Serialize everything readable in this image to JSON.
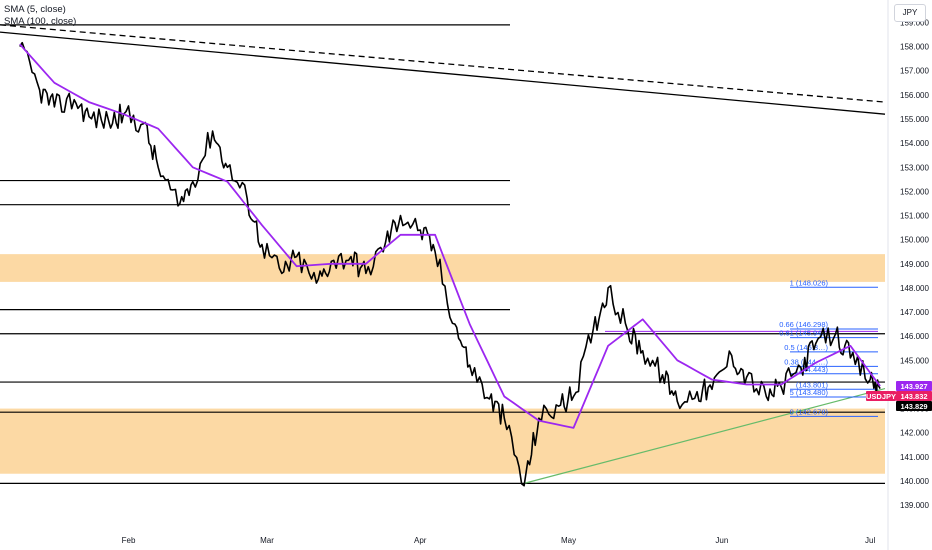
{
  "legend": {
    "sma5": "SMA (5, close)",
    "sma100": "SMA (100, close)"
  },
  "currency_button": "JPY",
  "colors": {
    "price": "#000000",
    "sma5": "#9c27f0",
    "fib": "#2962ff",
    "zone": "#fcd9a4",
    "trendline": "#66bb6a",
    "usdjpy_badge": "#e91e63",
    "sma_badge": "#9c27f0"
  },
  "chart_data": {
    "type": "line",
    "symbol": "USDJPY",
    "ylim": [
      138.3,
      159.6
    ],
    "y_ticks": [
      "159.000",
      "158.000",
      "157.000",
      "156.000",
      "155.000",
      "154.000",
      "153.000",
      "152.000",
      "151.000",
      "150.000",
      "149.000",
      "148.000",
      "147.000",
      "146.000",
      "145.000",
      "144.000",
      "143.000",
      "142.000",
      "141.000",
      "140.000",
      "139.000"
    ],
    "x_ticks": [
      "Feb",
      "Mar",
      "Apr",
      "May",
      "Jun",
      "Jul"
    ],
    "series": [
      {
        "x": [
          "2025-01-10",
          "2025-01-14",
          "2025-01-17",
          "2025-01-21",
          "2025-01-24",
          "2025-01-28",
          "2025-01-31",
          "2025-02-04",
          "2025-02-07",
          "2025-02-11",
          "2025-02-14",
          "2025-02-18",
          "2025-02-21",
          "2025-02-25",
          "2025-02-28",
          "2025-03-04",
          "2025-03-07",
          "2025-03-11",
          "2025-03-14",
          "2025-03-18",
          "2025-03-21",
          "2025-03-25",
          "2025-03-28",
          "2025-04-01",
          "2025-04-04",
          "2025-04-08",
          "2025-04-11",
          "2025-04-15",
          "2025-04-18",
          "2025-04-22",
          "2025-04-25",
          "2025-04-29",
          "2025-05-02",
          "2025-05-06",
          "2025-05-09",
          "2025-05-13",
          "2025-05-16",
          "2025-05-20",
          "2025-05-23",
          "2025-05-27",
          "2025-05-30",
          "2025-06-03",
          "2025-06-06",
          "2025-06-10",
          "2025-06-13",
          "2025-06-17",
          "2025-06-20",
          "2025-06-24",
          "2025-06-27",
          "2025-07-01",
          "2025-07-03"
        ],
        "y": [
          158.0,
          156.2,
          155.5,
          155.8,
          155.1,
          154.9,
          155.2,
          154.8,
          153.0,
          151.4,
          152.4,
          154.5,
          153.0,
          151.7,
          149.8,
          148.6,
          149.3,
          148.2,
          149.1,
          149.3,
          148.6,
          149.9,
          151.0,
          150.4,
          149.5,
          146.5,
          144.8,
          143.4,
          142.6,
          139.8,
          142.6,
          143.1,
          143.5,
          146.3,
          148.0,
          146.2,
          145.4,
          144.4,
          143.3,
          143.7,
          143.8,
          145.2,
          144.3,
          143.5,
          143.9,
          144.7,
          145.7,
          146.1,
          145.1,
          144.2,
          143.83
        ]
      },
      {
        "name": "SMA (5, close)",
        "x": [
          "2025-01-10",
          "2025-01-17",
          "2025-01-24",
          "2025-01-31",
          "2025-02-07",
          "2025-02-14",
          "2025-02-21",
          "2025-02-28",
          "2025-03-07",
          "2025-03-14",
          "2025-03-21",
          "2025-03-28",
          "2025-04-04",
          "2025-04-11",
          "2025-04-18",
          "2025-04-25",
          "2025-05-02",
          "2025-05-09",
          "2025-05-16",
          "2025-05-23",
          "2025-05-30",
          "2025-06-06",
          "2025-06-13",
          "2025-06-20",
          "2025-06-27",
          "2025-07-03"
        ],
        "y": [
          158.1,
          156.5,
          155.7,
          155.2,
          154.6,
          153.0,
          152.4,
          150.6,
          148.9,
          149.0,
          149.0,
          150.2,
          150.2,
          146.5,
          143.5,
          142.5,
          142.2,
          145.6,
          146.7,
          145.0,
          144.2,
          144.0,
          144.0,
          144.9,
          145.6,
          143.93
        ]
      }
    ],
    "sma100_line": {
      "from": [
        "2025-01-06",
        158.9
      ],
      "to": [
        "2025-07-04",
        155.7
      ]
    },
    "upper_trendline": {
      "from": [
        "2025-01-06",
        158.6
      ],
      "to": [
        "2025-07-04",
        155.2
      ]
    },
    "rising_trendline": {
      "from": [
        "2025-04-22",
        139.9
      ],
      "to": [
        "2025-07-04",
        143.83
      ]
    },
    "horizontal_levels": [
      158.9,
      152.45,
      151.45,
      147.1,
      146.1,
      144.1,
      142.85,
      139.9
    ],
    "zones": [
      {
        "from": 148.25,
        "to": 149.4
      },
      {
        "from": 140.3,
        "to": 143.0
      }
    ],
    "fibonacci": [
      {
        "label": "1 (148.026)",
        "value": 148.026
      },
      {
        "label": "0.66 (146.298)",
        "value": 146.298
      },
      {
        "label": "0.61 (145.940)",
        "value": 145.94
      },
      {
        "label": "0.5 (145.3…)",
        "value": 145.35
      },
      {
        "label": "0.38 (144.…)",
        "value": 144.75
      },
      {
        "label": "(144.443)",
        "value": 144.443
      },
      {
        "label": "(143.801)",
        "value": 143.801
      },
      {
        "label": "5 (143.480)",
        "value": 143.48
      },
      {
        "label": "0 (142.678)",
        "value": 142.678
      }
    ],
    "price_labels": [
      {
        "text": "143.927",
        "value": 143.927,
        "kind": "sma"
      },
      {
        "text": "USDJPY",
        "value": 143.9,
        "kind": "symbol"
      },
      {
        "text": "143.832",
        "value": 143.832,
        "kind": "usdjpy"
      },
      {
        "text": "143.829",
        "value": 143.829,
        "kind": "last"
      }
    ]
  }
}
